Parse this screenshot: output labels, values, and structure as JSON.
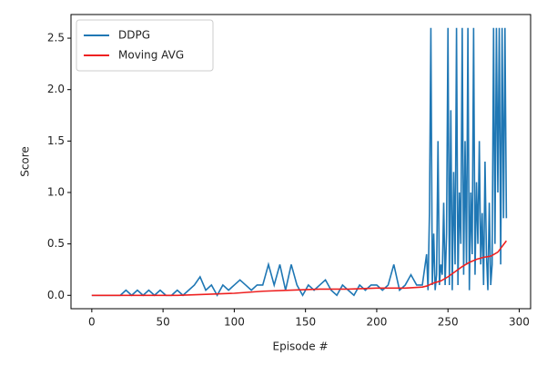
{
  "chart_data": {
    "type": "line",
    "xlabel": "Episode #",
    "ylabel": "Score",
    "xlim": [
      -14.6,
      308
    ],
    "ylim": [
      -0.13,
      2.73
    ],
    "xticks": [
      0,
      50,
      100,
      150,
      200,
      250,
      300
    ],
    "yticks": [
      {
        "value": 0,
        "label": "0.0"
      },
      0.5,
      {
        "value": 1,
        "label": "1.0"
      },
      1.5,
      {
        "value": 2,
        "label": "2.0"
      },
      2.5
    ],
    "legend": "upper left",
    "grid": false,
    "series": [
      {
        "name": "DDPG",
        "color": "#1f77b4",
        "x": [
          0,
          4,
          8,
          12,
          16,
          20,
          24,
          28,
          32,
          36,
          40,
          44,
          48,
          52,
          56,
          60,
          64,
          68,
          72,
          76,
          80,
          84,
          88,
          92,
          96,
          100,
          104,
          108,
          112,
          116,
          120,
          124,
          128,
          132,
          136,
          140,
          144,
          148,
          152,
          156,
          160,
          164,
          168,
          172,
          176,
          180,
          184,
          188,
          192,
          196,
          200,
          204,
          208,
          212,
          216,
          220,
          224,
          228,
          232,
          235,
          236,
          237,
          238,
          239,
          240,
          241,
          242,
          243,
          244,
          245,
          246,
          247,
          248,
          249,
          250,
          251,
          252,
          253,
          254,
          255,
          256,
          257,
          258,
          259,
          260,
          261,
          262,
          263,
          264,
          265,
          266,
          267,
          268,
          269,
          270,
          271,
          272,
          273,
          274,
          275,
          276,
          277,
          278,
          279,
          280,
          281,
          282,
          283,
          284,
          285,
          286,
          287,
          288,
          289,
          290,
          291
        ],
        "values": [
          0,
          0,
          0,
          0,
          0,
          0,
          0.05,
          0,
          0.05,
          0,
          0.05,
          0,
          0.05,
          0,
          0,
          0.05,
          0,
          0.05,
          0.1,
          0.18,
          0.05,
          0.1,
          0,
          0.1,
          0.05,
          0.1,
          0.15,
          0.1,
          0.05,
          0.1,
          0.1,
          0.3,
          0.1,
          0.3,
          0.05,
          0.3,
          0.1,
          0,
          0.1,
          0.05,
          0.1,
          0.15,
          0.05,
          0,
          0.1,
          0.05,
          0,
          0.1,
          0.05,
          0.1,
          0.1,
          0.05,
          0.1,
          0.3,
          0.05,
          0.1,
          0.2,
          0.1,
          0.1,
          0.4,
          0.05,
          0.8,
          2.6,
          0.1,
          0.6,
          0.05,
          0.2,
          1.5,
          0.1,
          0.3,
          0.2,
          0.9,
          0.1,
          0.6,
          2.6,
          0.1,
          1.8,
          0.05,
          1.2,
          0.3,
          2.6,
          0.1,
          1.0,
          0.5,
          2.6,
          0.2,
          1.5,
          0.3,
          2.6,
          0.05,
          1.0,
          0.4,
          2.6,
          0.2,
          1.1,
          0.5,
          1.5,
          0.3,
          0.8,
          0.1,
          1.3,
          0.4,
          0.05,
          0.9,
          0.1,
          0.3,
          2.6,
          0.5,
          2.6,
          1.0,
          2.6,
          0.3,
          2.6,
          0.75,
          2.6,
          0.75
        ]
      },
      {
        "name": "Moving AVG",
        "color": "#ee2020",
        "x": [
          0,
          20,
          40,
          60,
          80,
          100,
          120,
          140,
          160,
          180,
          200,
          220,
          232,
          235,
          240,
          245,
          250,
          255,
          260,
          265,
          270,
          275,
          280,
          285,
          291
        ],
        "values": [
          0,
          0,
          0,
          0,
          0.01,
          0.02,
          0.04,
          0.05,
          0.06,
          0.06,
          0.07,
          0.07,
          0.08,
          0.09,
          0.12,
          0.14,
          0.18,
          0.23,
          0.28,
          0.32,
          0.35,
          0.37,
          0.38,
          0.42,
          0.53
        ]
      }
    ]
  }
}
